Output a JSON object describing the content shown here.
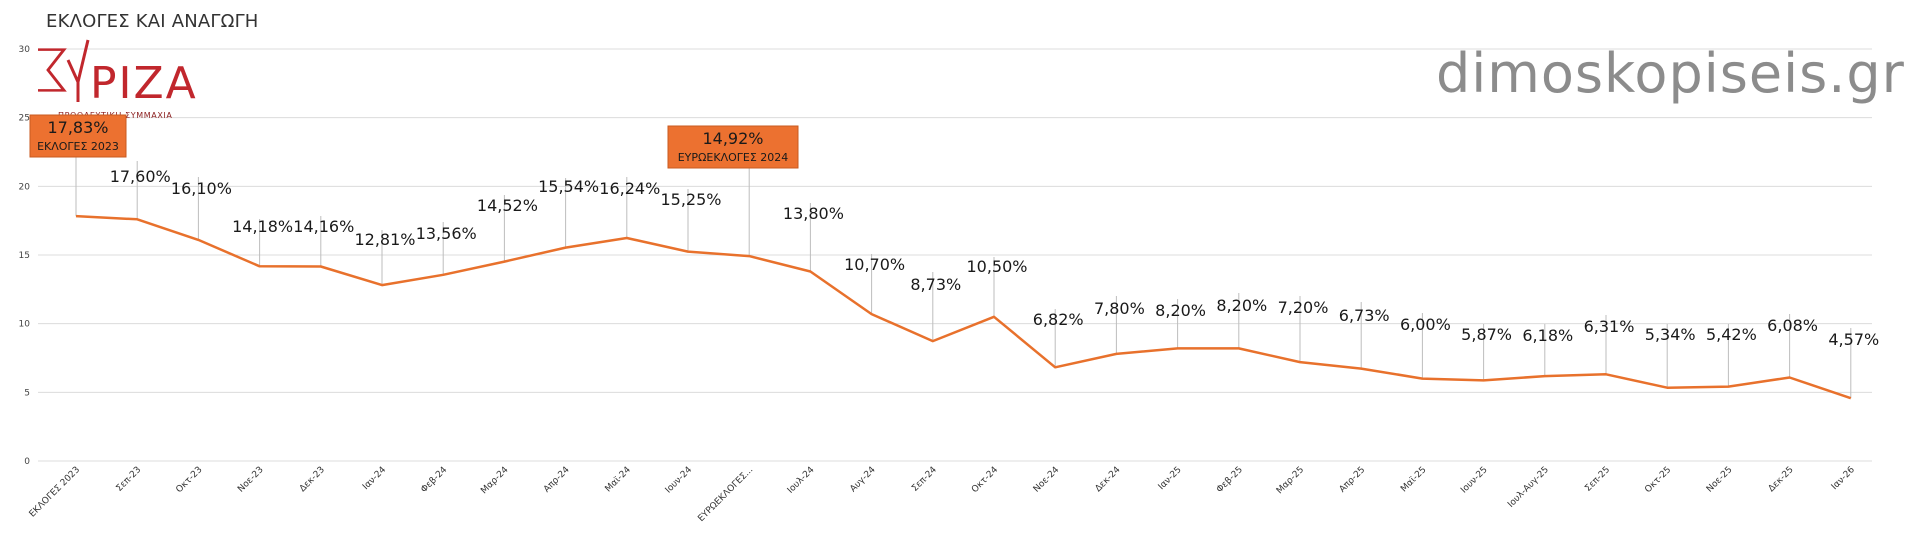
{
  "header": {
    "title": "ΕΚΛΟΓΕΣ ΚΑΙ ΑΝΑΓΩΓΗ",
    "watermark": "dimoskopiseis.gr"
  },
  "logo": {
    "wordmark": "ΣΥΡΙΖΑ",
    "tagline": "ΠΡΟΟΔΕΥΤΙΚΗ ΣΥΜΜΑΧΙΑ",
    "color": "#c1272d"
  },
  "chart_data": {
    "type": "line",
    "title": "ΕΚΛΟΓΕΣ ΚΑΙ ΑΝΑΓΩΓΗ",
    "xlabel": "",
    "ylabel": "",
    "ylim": [
      0,
      30
    ],
    "yticks": [
      0,
      5,
      10,
      15,
      20,
      25,
      30
    ],
    "grid": true,
    "legend": "none",
    "line_color": "#e8712c",
    "categories": [
      "ΕΚΛΟΓΕΣ 2023",
      "Σεπ-23",
      "Οκτ-23",
      "Νοε-23",
      "Δεκ-23",
      "Ιαν-24",
      "Φεβ-24",
      "Μαρ-24",
      "Απρ-24",
      "Μαϊ-24",
      "Ιουν-24",
      "ΕΥΡΩΕΚΛΟΓΕΣ...",
      "Ιουλ-24",
      "Αυγ-24",
      "Σεπ-24",
      "Οκτ-24",
      "Νοε-24",
      "Δεκ-24",
      "Ιαν-25",
      "Φεβ-25",
      "Μαρ-25",
      "Απρ-25",
      "Μαϊ-25",
      "Ιουν-25",
      "Ιουλ-Αυγ-25",
      "Σεπ-25",
      "Οκτ-25",
      "Νοε-25",
      "Δεκ-25",
      "Ιαν-26"
    ],
    "values": [
      17.83,
      17.6,
      16.1,
      14.18,
      14.16,
      12.81,
      13.56,
      14.52,
      15.54,
      16.24,
      15.25,
      14.92,
      13.8,
      10.7,
      8.73,
      10.5,
      6.82,
      7.8,
      8.2,
      8.2,
      7.2,
      6.73,
      6.0,
      5.87,
      6.18,
      6.31,
      5.34,
      5.42,
      6.08,
      4.57
    ],
    "data_labels": [
      "17,83%",
      "17,60%",
      "16,10%",
      "14,18%",
      "14,16%",
      "12,81%",
      "13,56%",
      "14,52%",
      "15,54%",
      "16,24%",
      "15,25%",
      "14,92%",
      "13,80%",
      "10,70%",
      "8,73%",
      "10,50%",
      "6,82%",
      "7,80%",
      "8,20%",
      "8,20%",
      "7,20%",
      "6,73%",
      "6,00%",
      "5,87%",
      "6,18%",
      "6,31%",
      "5,34%",
      "5,42%",
      "6,08%",
      "4,57%"
    ],
    "callouts": [
      {
        "index": 0,
        "value_label": "17,83%",
        "text": "ΕΚΛΟΓΕΣ 2023",
        "color": "#ec7130"
      },
      {
        "index": 11,
        "value_label": "14,92%",
        "text": "ΕΥΡΩΕΚΛΟΓΕΣ 2024",
        "color": "#ec7130"
      }
    ]
  }
}
